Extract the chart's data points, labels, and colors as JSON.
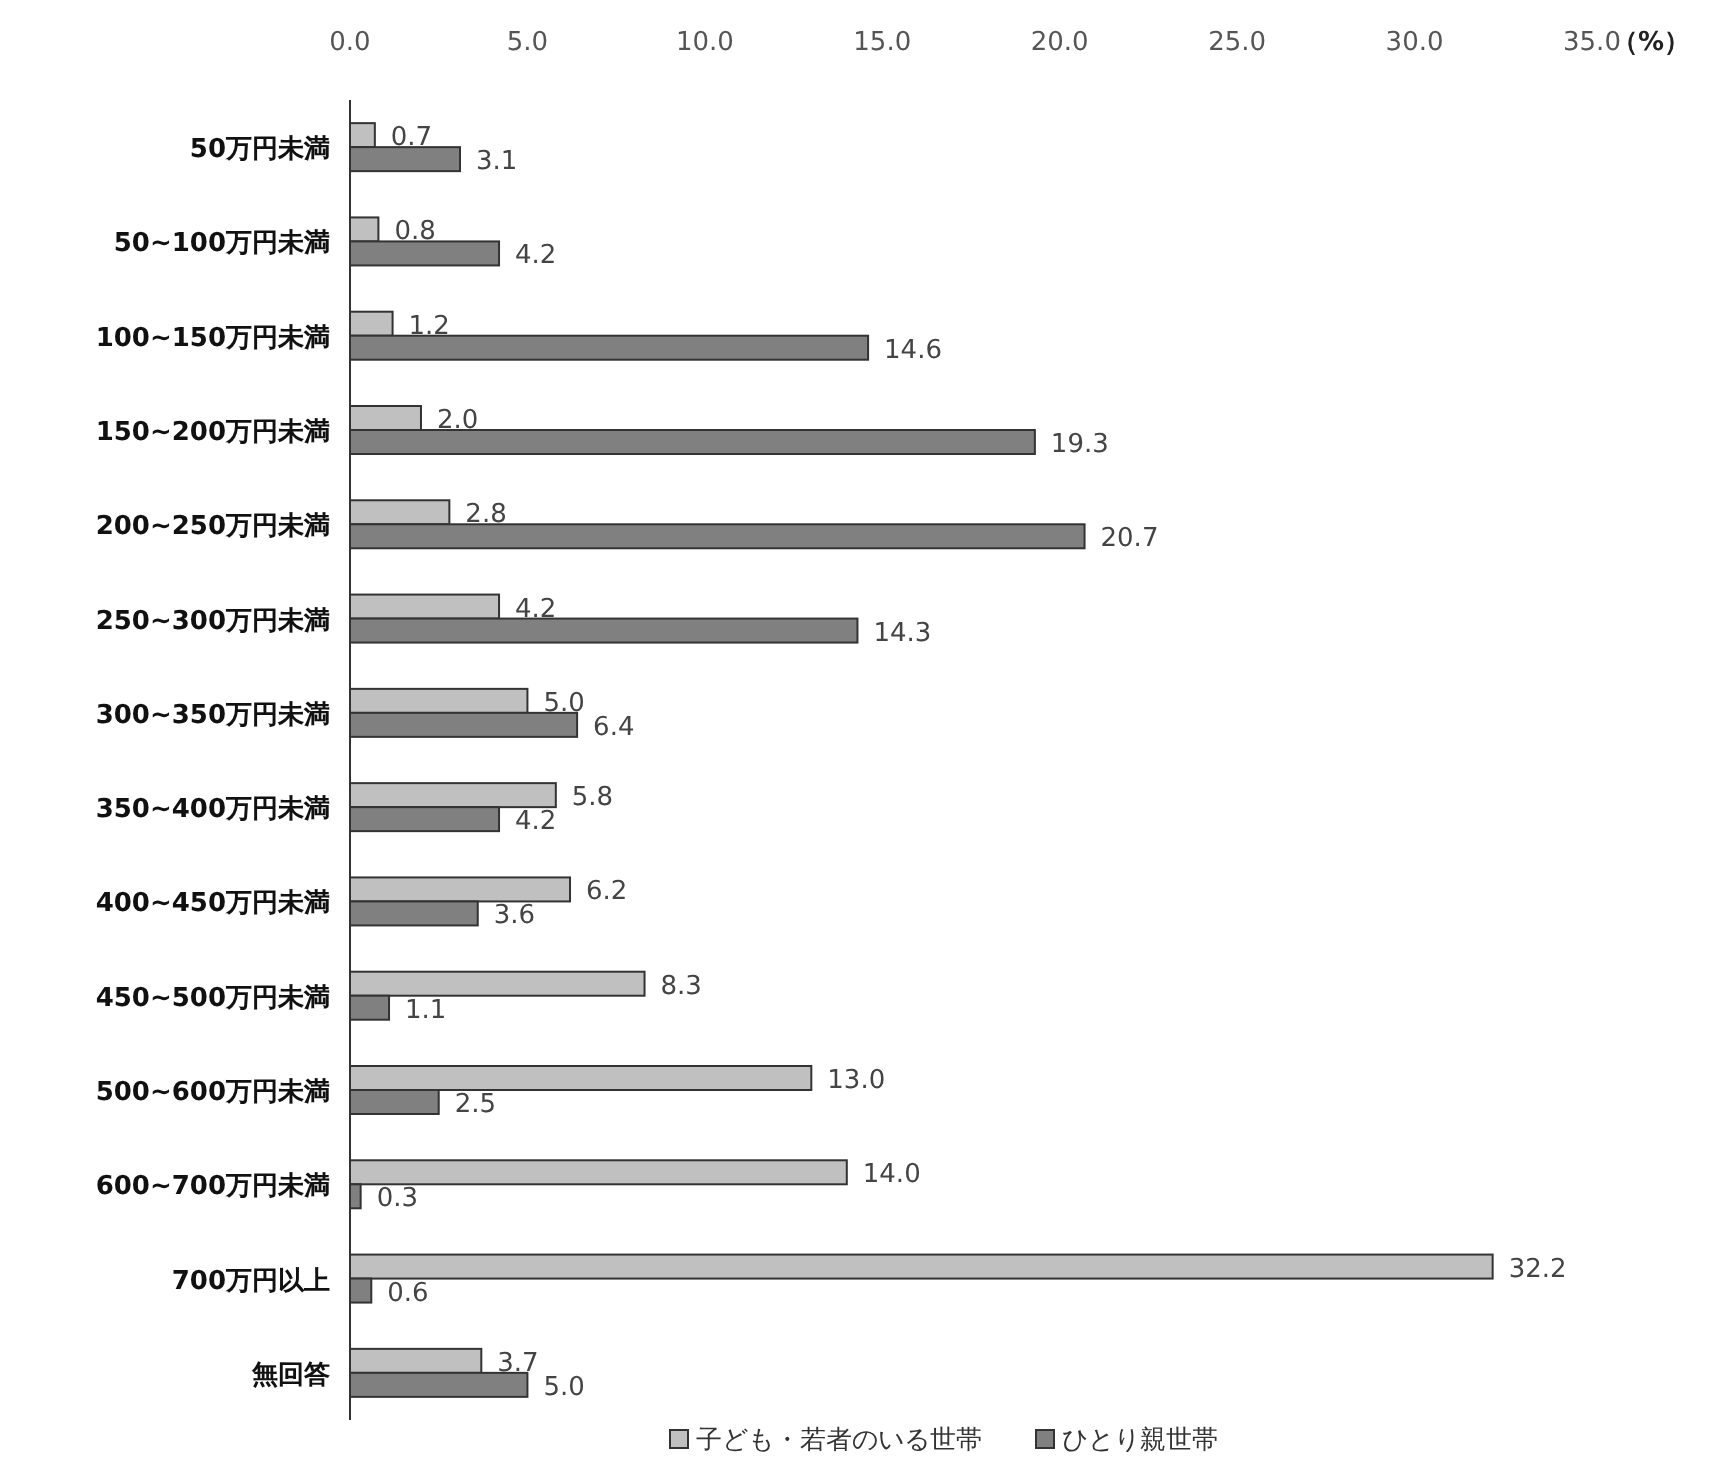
{
  "chart_data": {
    "type": "bar",
    "orientation": "horizontal",
    "xlabel": "（%）",
    "categories": [
      "50万円未満",
      "50~100万円未満",
      "100~150万円未満",
      "150~200万円未満",
      "200~250万円未満",
      "250~300万円未満",
      "300~350万円未満",
      "350~400万円未満",
      "400~450万円未満",
      "450~500万円未満",
      "500~600万円未満",
      "600~700万円未満",
      "700万円以上",
      "無回答"
    ],
    "series": [
      {
        "name": "子ども・若者のいる世帯",
        "color": "#c0c0c0",
        "values": [
          0.7,
          0.8,
          1.2,
          2.0,
          2.8,
          4.2,
          5.0,
          5.8,
          6.2,
          8.3,
          13.0,
          14.0,
          32.2,
          3.7
        ],
        "value_labels": [
          "0.7",
          "0.8",
          "1.2",
          "2.0",
          "2.8",
          "4.2",
          "5.0",
          "5.8",
          "6.2",
          "8.3",
          "13.0",
          "14.0",
          "32.2",
          "3.7"
        ]
      },
      {
        "name": "ひとり親世帯",
        "color": "#808080",
        "values": [
          3.1,
          4.2,
          14.6,
          19.3,
          20.7,
          14.3,
          6.4,
          4.2,
          3.6,
          1.1,
          2.5,
          0.3,
          0.6,
          5.0
        ],
        "value_labels": [
          "3.1",
          "4.2",
          "14.6",
          "19.3",
          "20.7",
          "14.3",
          "6.4",
          "4.2",
          "3.6",
          "1.1",
          "2.5",
          "0.3",
          "0.6",
          "5.0"
        ]
      }
    ],
    "xlim": [
      0,
      35
    ],
    "xticks": [
      {
        "value": 0,
        "label": "0.0"
      },
      {
        "value": 5,
        "label": "5.0"
      },
      {
        "value": 10,
        "label": "10.0"
      },
      {
        "value": 15,
        "label": "15.0"
      },
      {
        "value": 20,
        "label": "20.0"
      },
      {
        "value": 25,
        "label": "25.0"
      },
      {
        "value": 30,
        "label": "30.0"
      },
      {
        "value": 35,
        "label": "35.0"
      }
    ],
    "grid": false,
    "legend": "bottom"
  }
}
